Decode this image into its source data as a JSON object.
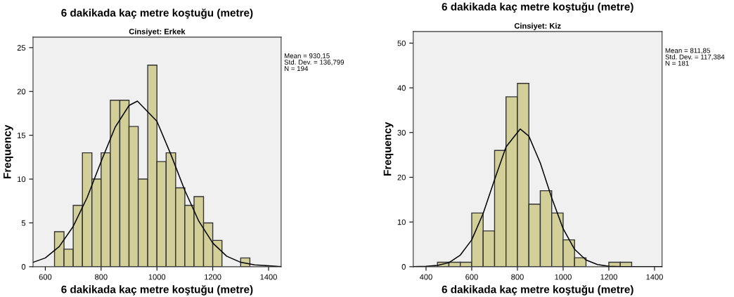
{
  "chart_data": [
    {
      "type": "histogram",
      "title": "6 dakikada kaç metre koştuğu (metre)",
      "subtitle": "Cinsiyet: Erkek",
      "xlabel": "6 dakikada kaç metre koştuğu (metre)",
      "ylabel": "Frequency",
      "bins": [
        633,
        667,
        700,
        733,
        767,
        800,
        833,
        867,
        900,
        933,
        967,
        1000,
        1033,
        1067,
        1100,
        1133,
        1167,
        1200,
        1233,
        1267,
        1300,
        1333
      ],
      "values": [
        4,
        2,
        7,
        13,
        10,
        13,
        19,
        19,
        16,
        10,
        23,
        12,
        13,
        9,
        7,
        8,
        5,
        3,
        0,
        0,
        1
      ],
      "color": "#d3cf98",
      "series": [
        {
          "type": "line",
          "color": "#000000",
          "x": [
            556,
            600,
            650,
            700,
            750,
            800,
            850,
            900,
            930,
            1000,
            1050,
            1100,
            1150,
            1200,
            1250,
            1300,
            1350,
            1400,
            1445
          ],
          "values": [
            0.5,
            1.0,
            2.3,
            4.6,
            7.9,
            12.0,
            15.9,
            18.4,
            18.9,
            16.6,
            12.8,
            8.7,
            5.2,
            2.7,
            1.2,
            0.5,
            0.2,
            0.1,
            0.0
          ]
        }
      ],
      "annotations": [
        "Mean = 930,15",
        "Std. Dev. = 136,799",
        "N = 194"
      ],
      "xlim": [
        556,
        1445
      ],
      "ylim": [
        0,
        26.2
      ],
      "xticks": [
        600,
        800,
        1000,
        1200,
        1400
      ],
      "yticks": [
        0,
        5,
        10,
        15,
        20,
        25
      ],
      "grid": false
    },
    {
      "type": "histogram",
      "title": "6 dakikada kaç metre koştuğu (metre)",
      "subtitle": "Cinsiyet: Kiz",
      "xlabel": "6 dakikada kaç metre koştuğu (metre)",
      "ylabel": "Frequency",
      "bins": [
        450,
        500,
        550,
        600,
        650,
        700,
        750,
        800,
        850,
        900,
        950,
        1000,
        1050,
        1100,
        1150,
        1200,
        1250,
        1300
      ],
      "values": [
        1,
        1,
        1,
        12,
        8,
        26,
        38,
        41,
        14,
        17,
        12,
        6,
        2,
        0,
        0,
        1,
        1
      ],
      "color": "#d3cf98",
      "series": [
        {
          "type": "line",
          "color": "#000000",
          "x": [
            344,
            400,
            450,
            500,
            550,
            600,
            650,
            700,
            750,
            812,
            850,
            900,
            950,
            1000,
            1050,
            1100,
            1150,
            1200,
            1250,
            1300,
            1433
          ],
          "values": [
            0.0,
            0.1,
            0.3,
            0.9,
            2.6,
            6.0,
            11.9,
            19.5,
            26.8,
            30.8,
            29.2,
            23.2,
            15.4,
            8.5,
            3.9,
            1.5,
            0.5,
            0.1,
            0.0,
            0.0,
            0.0
          ]
        }
      ],
      "annotations": [
        "Mean = 811,85",
        "Std. Dev. = 117,384",
        "N = 181"
      ],
      "xlim": [
        344,
        1433
      ],
      "ylim": [
        0,
        52.6
      ],
      "xticks": [
        400,
        600,
        800,
        1000,
        1200,
        1400
      ],
      "yticks": [
        0,
        10,
        20,
        30,
        40,
        50
      ],
      "grid": false
    }
  ]
}
